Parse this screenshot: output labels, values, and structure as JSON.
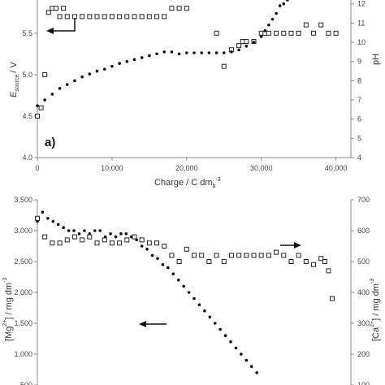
{
  "chart_data": [
    {
      "type": "scatter",
      "panel_label": "a)",
      "xlabel": "Charge  / C dm",
      "xlabel_sub": "b",
      "xlabel_sup": "-3",
      "ylabel_left": "E",
      "ylabel_left_sub": "source",
      "ylabel_left_unit": "/  V",
      "ylabel_right": "pH",
      "xlim": [
        0,
        42000
      ],
      "ylim_left": [
        4.0,
        5.9
      ],
      "ylim_right": [
        4,
        12.2
      ],
      "x_ticks": [
        0,
        10000,
        20000,
        30000,
        40000
      ],
      "x_tick_labels": [
        "0",
        "10,000",
        "20,000",
        "30,000",
        "40,000"
      ],
      "y_left_ticks": [
        4.0,
        4.5,
        5.0,
        5.5
      ],
      "y_left_tick_labels": [
        "4.0",
        "4.5",
        "5.0",
        "5.5"
      ],
      "y_right_ticks": [
        4,
        5,
        6,
        7,
        8,
        9,
        10,
        11,
        12
      ],
      "y_right_tick_labels": [
        "4",
        "5",
        "6",
        "7",
        "8",
        "9",
        "10",
        "11",
        "12"
      ],
      "series": [
        {
          "marker": "open-square",
          "axis": "left",
          "x": [
            0,
            500,
            1000,
            1500,
            2000,
            2500,
            3000,
            3500,
            4000,
            5000,
            6000,
            7000,
            8000,
            9000,
            10000,
            11000,
            12000,
            13000,
            14000,
            15000,
            16000,
            17000,
            18000,
            19000,
            20000,
            24000,
            25000,
            26000,
            27000,
            27500,
            28000,
            29000,
            30000,
            30500,
            31000,
            32000,
            33000,
            34000,
            35000,
            36000,
            37000,
            38000,
            39000,
            40000
          ],
          "y": [
            4.5,
            4.6,
            5.0,
            5.75,
            5.8,
            5.8,
            5.7,
            5.8,
            5.7,
            5.7,
            5.7,
            5.7,
            5.7,
            5.7,
            5.7,
            5.7,
            5.7,
            5.7,
            5.7,
            5.7,
            5.7,
            5.7,
            5.8,
            5.8,
            5.8,
            5.5,
            5.1,
            5.3,
            5.35,
            5.4,
            5.4,
            5.4,
            5.5,
            5.5,
            5.5,
            5.5,
            5.5,
            5.5,
            5.5,
            5.6,
            5.5,
            5.6,
            5.5,
            5.5
          ]
        },
        {
          "marker": "filled-circle",
          "axis": "right",
          "x": [
            0,
            1000,
            2000,
            3000,
            4000,
            5000,
            6000,
            7000,
            8000,
            9000,
            10000,
            11000,
            12000,
            13000,
            14000,
            15000,
            16000,
            17000,
            18000,
            19000,
            20000,
            21000,
            22000,
            23000,
            24000,
            25000,
            26000,
            27000,
            28000,
            29000,
            30000,
            30500,
            31000,
            31500,
            32000,
            32500,
            33000,
            33500
          ],
          "y": [
            6.7,
            7.0,
            7.3,
            7.6,
            7.8,
            8.0,
            8.2,
            8.35,
            8.5,
            8.6,
            8.75,
            8.9,
            9.0,
            9.1,
            9.2,
            9.3,
            9.4,
            9.5,
            9.5,
            9.4,
            9.45,
            9.45,
            9.45,
            9.45,
            9.45,
            9.45,
            9.5,
            9.6,
            9.8,
            10.0,
            10.3,
            10.6,
            10.9,
            11.2,
            11.5,
            11.9,
            12.0,
            12.2
          ]
        }
      ]
    },
    {
      "type": "scatter",
      "ylabel_left": "[Mg",
      "ylabel_left_sup": "2+",
      "ylabel_left_unit": "]  /  mg dm",
      "ylabel_left_unit_sup": "-3",
      "ylabel_right": "[Ca",
      "ylabel_right_sup": "2+",
      "ylabel_right_unit": "]  /  mg dm",
      "ylabel_right_unit_sup": "-3",
      "xlim": [
        0,
        42000
      ],
      "ylim_left": [
        500,
        3500
      ],
      "ylim_right": [
        100,
        700
      ],
      "y_left_ticks": [
        500,
        1000,
        1500,
        2000,
        2500,
        3000,
        3500
      ],
      "y_left_tick_labels": [
        "500",
        "1,000",
        "1,500",
        "2,000",
        "2,500",
        "3,000",
        "3,500"
      ],
      "y_right_ticks": [
        100,
        200,
        300,
        400,
        500,
        600,
        700
      ],
      "y_right_tick_labels": [
        "100",
        "200",
        "300",
        "400",
        "500",
        "600",
        "700"
      ],
      "series": [
        {
          "marker": "filled-circle",
          "axis": "left",
          "x": [
            0,
            700,
            1400,
            2100,
            2800,
            3500,
            4200,
            4900,
            5600,
            6300,
            7000,
            7700,
            8400,
            9100,
            9800,
            10500,
            11200,
            11900,
            12600,
            13300,
            14000,
            14700,
            15400,
            16100,
            16800,
            17500,
            18200,
            18900,
            19600,
            20300,
            21000,
            21700,
            22400,
            23100,
            23800,
            24500,
            25200,
            25900,
            26600,
            27300,
            28000,
            28700,
            29400
          ],
          "y": [
            3150,
            3300,
            3200,
            3150,
            3100,
            3050,
            3000,
            3000,
            2950,
            3000,
            2950,
            3000,
            3000,
            2900,
            2950,
            2900,
            2950,
            2950,
            2900,
            2850,
            2750,
            2700,
            2600,
            2550,
            2450,
            2400,
            2300,
            2200,
            2100,
            2000,
            1900,
            1800,
            1700,
            1600,
            1500,
            1400,
            1300,
            1200,
            1100,
            1000,
            900,
            800,
            700
          ]
        },
        {
          "marker": "open-square",
          "axis": "right",
          "x": [
            0,
            1000,
            2000,
            3000,
            4000,
            5000,
            6000,
            7000,
            8000,
            9000,
            10000,
            11000,
            12000,
            13000,
            14000,
            15000,
            16000,
            17000,
            18000,
            19000,
            20000,
            21000,
            22000,
            23000,
            24000,
            25000,
            26000,
            27000,
            28000,
            29000,
            30000,
            31000,
            32000,
            33000,
            34000,
            35000,
            36000,
            37000,
            38000,
            38500,
            39000,
            39500
          ],
          "y": [
            640,
            580,
            560,
            560,
            570,
            580,
            570,
            580,
            560,
            570,
            560,
            560,
            570,
            580,
            570,
            560,
            560,
            550,
            520,
            500,
            540,
            520,
            520,
            500,
            520,
            500,
            520,
            520,
            520,
            520,
            520,
            520,
            530,
            520,
            500,
            520,
            500,
            490,
            510,
            500,
            470,
            380
          ]
        }
      ],
      "annotations": [
        {
          "type": "arrow",
          "direction": "left",
          "near_series": 0
        },
        {
          "type": "arrow",
          "direction": "right",
          "near_series": 1
        }
      ]
    }
  ]
}
